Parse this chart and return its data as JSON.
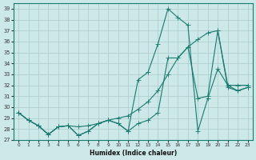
{
  "xlabel": "Humidex (Indice chaleur)",
  "x_values": [
    0,
    1,
    2,
    3,
    4,
    5,
    6,
    7,
    8,
    9,
    10,
    11,
    12,
    13,
    14,
    15,
    16,
    17,
    18,
    19,
    20,
    21,
    22,
    23
  ],
  "series1": [
    29.5,
    28.8,
    28.3,
    27.5,
    28.2,
    28.3,
    27.4,
    27.8,
    28.5,
    28.8,
    28.5,
    27.8,
    32.5,
    33.2,
    35.8,
    39.0,
    38.2,
    37.5,
    27.8,
    30.8,
    33.5,
    32.0,
    31.5,
    31.8
  ],
  "series2": [
    29.5,
    28.8,
    28.3,
    27.5,
    28.2,
    28.3,
    28.2,
    28.3,
    28.5,
    28.8,
    29.0,
    29.2,
    29.8,
    30.5,
    31.5,
    33.0,
    34.5,
    35.5,
    36.2,
    36.8,
    37.0,
    32.0,
    32.0,
    32.0
  ],
  "series3": [
    29.5,
    28.8,
    28.3,
    27.5,
    28.2,
    28.3,
    27.4,
    27.8,
    28.5,
    28.8,
    28.5,
    27.8,
    28.5,
    28.8,
    29.5,
    34.5,
    34.5,
    35.5,
    30.8,
    31.0,
    37.0,
    31.8,
    31.5,
    31.8
  ],
  "line_color": "#1a7a6e",
  "bg_color": "#cce8e8",
  "grid_color": "#aacccc",
  "ylim": [
    27,
    39.5
  ],
  "yticks": [
    27,
    28,
    29,
    30,
    31,
    32,
    33,
    34,
    35,
    36,
    37,
    38,
    39
  ],
  "xlim": [
    -0.5,
    23.5
  ],
  "xticks": [
    0,
    1,
    2,
    3,
    4,
    5,
    6,
    7,
    8,
    9,
    10,
    11,
    12,
    13,
    14,
    15,
    16,
    17,
    18,
    19,
    20,
    21,
    22,
    23
  ]
}
